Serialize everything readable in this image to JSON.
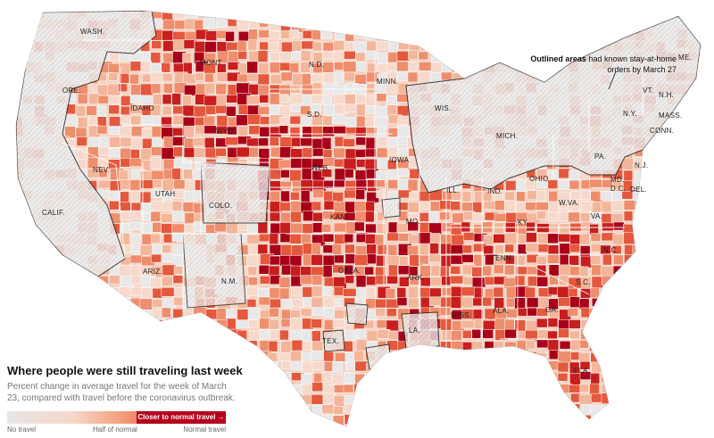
{
  "legend": {
    "title": "Where people were still traveling last week",
    "subtitle": "Percent change in average travel for the week of March 23, compared with travel before the coronavirus outbreak.",
    "pill_label": "Closer to normal travel →",
    "scale_left": "No travel",
    "scale_mid": "Half of normal",
    "scale_right": "Normal travel"
  },
  "annotation": {
    "bold": "Outlined areas",
    "text": "had known stay-at-home orders by March 27"
  },
  "colors": {
    "no_travel": "#e6e6e6",
    "half": "#f3a07d",
    "normal": "#b5001c",
    "outline": "#222222"
  },
  "state_labels": [
    "WASH.",
    "ORE.",
    "IDAHO",
    "MONT.",
    "WYO.",
    "N.D.",
    "S.D.",
    "MINN.",
    "NEB.",
    "IOWA",
    "WIS.",
    "MICH.",
    "ILL.",
    "IND.",
    "OHIO",
    "PA.",
    "N.Y.",
    "VT.",
    "N.H.",
    "ME.",
    "MASS.",
    "CONN.",
    "N.J.",
    "MD.",
    "D.C.",
    "DEL.",
    "W.VA.",
    "VA.",
    "KY.",
    "TENN.",
    "N.C.",
    "S.C.",
    "GA.",
    "FLA.",
    "ALA.",
    "MISS.",
    "LA.",
    "ARK.",
    "MO.",
    "KAN.",
    "OKLA.",
    "TEX.",
    "COLO.",
    "UTAH",
    "NEV.",
    "CALIF.",
    "ARIZ.",
    "N.M."
  ]
}
